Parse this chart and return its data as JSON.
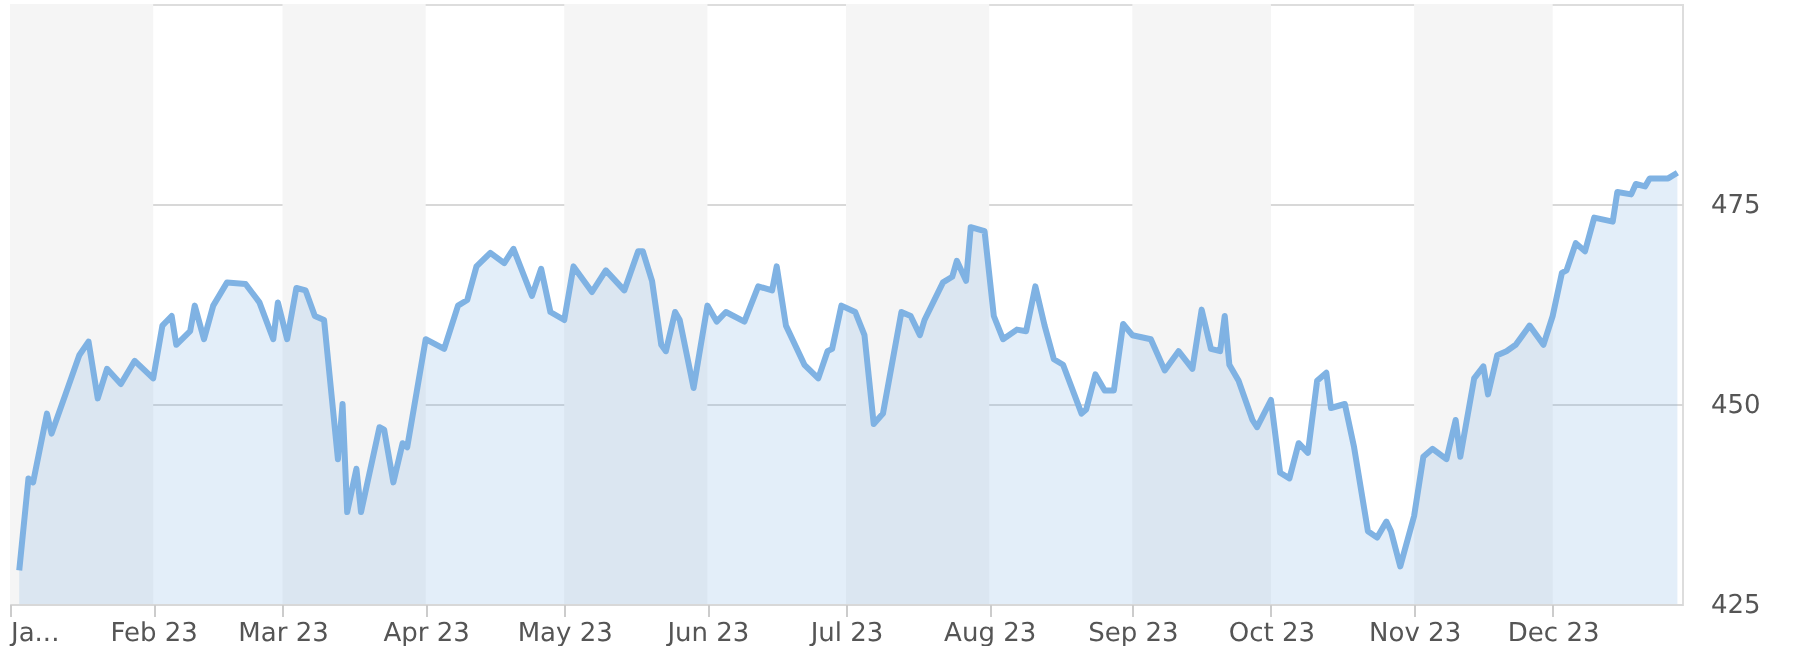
{
  "chart_data": {
    "type": "area",
    "x": [
      "2023-01-03",
      "2023-01-05",
      "2023-01-06",
      "2023-01-09",
      "2023-01-10",
      "2023-01-13",
      "2023-01-16",
      "2023-01-18",
      "2023-01-20",
      "2023-01-22",
      "2023-01-25",
      "2023-01-28",
      "2023-02-01",
      "2023-02-03",
      "2023-02-05",
      "2023-02-06",
      "2023-02-09",
      "2023-02-10",
      "2023-02-12",
      "2023-02-14",
      "2023-02-17",
      "2023-02-21",
      "2023-02-24",
      "2023-02-27",
      "2023-02-28",
      "2023-03-02",
      "2023-03-04",
      "2023-03-06",
      "2023-03-08",
      "2023-03-10",
      "2023-03-13",
      "2023-03-14",
      "2023-03-15",
      "2023-03-17",
      "2023-03-18",
      "2023-03-22",
      "2023-03-23",
      "2023-03-25",
      "2023-03-27",
      "2023-03-28",
      "2023-04-01",
      "2023-04-05",
      "2023-04-08",
      "2023-04-10",
      "2023-04-12",
      "2023-04-15",
      "2023-04-18",
      "2023-04-20",
      "2023-04-24",
      "2023-04-26",
      "2023-04-28",
      "2023-05-01",
      "2023-05-03",
      "2023-05-07",
      "2023-05-10",
      "2023-05-14",
      "2023-05-17",
      "2023-05-18",
      "2023-05-20",
      "2023-05-22",
      "2023-05-23",
      "2023-05-25",
      "2023-05-26",
      "2023-05-29",
      "2023-06-01",
      "2023-06-03",
      "2023-06-05",
      "2023-06-09",
      "2023-06-12",
      "2023-06-15",
      "2023-06-16",
      "2023-06-18",
      "2023-06-22",
      "2023-06-25",
      "2023-06-27",
      "2023-06-28",
      "2023-06-30",
      "2023-07-03",
      "2023-07-05",
      "2023-07-07",
      "2023-07-09",
      "2023-07-13",
      "2023-07-15",
      "2023-07-17",
      "2023-07-18",
      "2023-07-22",
      "2023-07-24",
      "2023-07-25",
      "2023-07-27",
      "2023-07-28",
      "2023-07-31",
      "2023-08-02",
      "2023-08-04",
      "2023-08-07",
      "2023-08-09",
      "2023-08-11",
      "2023-08-13",
      "2023-08-15",
      "2023-08-17",
      "2023-08-21",
      "2023-08-22",
      "2023-08-24",
      "2023-08-26",
      "2023-08-28",
      "2023-08-30",
      "2023-09-01",
      "2023-09-05",
      "2023-09-08",
      "2023-09-11",
      "2023-09-14",
      "2023-09-16",
      "2023-09-18",
      "2023-09-20",
      "2023-09-21",
      "2023-09-22",
      "2023-09-24",
      "2023-09-27",
      "2023-09-28",
      "2023-10-01",
      "2023-10-03",
      "2023-10-05",
      "2023-10-07",
      "2023-10-09",
      "2023-10-11",
      "2023-10-13",
      "2023-10-14",
      "2023-10-17",
      "2023-10-19",
      "2023-10-22",
      "2023-10-24",
      "2023-10-26",
      "2023-10-27",
      "2023-10-29",
      "2023-11-01",
      "2023-11-03",
      "2023-11-05",
      "2023-11-08",
      "2023-11-10",
      "2023-11-11",
      "2023-11-14",
      "2023-11-16",
      "2023-11-17",
      "2023-11-19",
      "2023-11-21",
      "2023-11-23",
      "2023-11-26",
      "2023-11-29",
      "2023-12-01",
      "2023-12-03",
      "2023-12-04",
      "2023-12-06",
      "2023-12-08",
      "2023-12-10",
      "2023-12-14",
      "2023-12-15",
      "2023-12-18",
      "2023-12-19",
      "2023-12-21",
      "2023-12-22",
      "2023-12-26",
      "2023-12-28"
    ],
    "series": [
      {
        "color": "#7fb2e3",
        "values": [
          429.2,
          440.7,
          440.2,
          448.8,
          446.3,
          451.2,
          456.1,
          457.8,
          450.7,
          454.4,
          452.5,
          455.4,
          453.2,
          459.8,
          461.0,
          457.4,
          459.1,
          462.3,
          458.1,
          462.3,
          465.2,
          465.0,
          462.7,
          458.1,
          462.7,
          458.1,
          464.5,
          464.2,
          461.0,
          460.5,
          443.1,
          450.0,
          436.5,
          441.9,
          436.5,
          447.1,
          446.8,
          440.2,
          445.1,
          444.6,
          458.1,
          456.9,
          462.3,
          463.0,
          467.2,
          468.9,
          467.6,
          469.4,
          463.5,
          466.9,
          461.5,
          460.5,
          467.2,
          464.0,
          466.7,
          464.2,
          469.1,
          469.1,
          465.4,
          457.4,
          456.6,
          461.5,
          460.5,
          452.0,
          462.3,
          460.3,
          461.5,
          460.3,
          464.7,
          464.2,
          467.2,
          459.8,
          454.9,
          453.2,
          456.6,
          456.9,
          462.3,
          461.5,
          458.6,
          447.5,
          448.8,
          461.5,
          461.0,
          458.6,
          460.5,
          465.2,
          465.9,
          467.9,
          465.4,
          472.1,
          471.6,
          461.0,
          458.1,
          459.3,
          459.1,
          464.7,
          459.8,
          455.6,
          454.9,
          448.8,
          449.3,
          453.7,
          451.7,
          451.7,
          460.0,
          458.6,
          458.1,
          454.2,
          456.6,
          454.4,
          461.8,
          456.9,
          456.6,
          461.0,
          454.9,
          452.9,
          448.0,
          447.1,
          450.5,
          441.4,
          440.7,
          445.1,
          443.9,
          452.9,
          453.9,
          449.5,
          450.0,
          444.6,
          434.1,
          433.3,
          435.3,
          434.1,
          429.7,
          436.0,
          443.4,
          444.4,
          443.1,
          448.0,
          443.4,
          453.2,
          454.7,
          451.2,
          456.1,
          456.6,
          457.4,
          459.8,
          457.4,
          461.0,
          466.4,
          466.7,
          470.1,
          469.1,
          473.3,
          472.8,
          476.5,
          476.2,
          477.5,
          477.2,
          478.2,
          478.2,
          478.9
        ]
      }
    ],
    "xlim": [
      "2023-01-01",
      "2023-12-29"
    ],
    "xticks": [
      {
        "value": "2023-01-01",
        "label": "Ja..."
      },
      {
        "value": "2023-02-01",
        "label": "Feb 23"
      },
      {
        "value": "2023-03-01",
        "label": "Mar 23"
      },
      {
        "value": "2023-04-01",
        "label": "Apr 23"
      },
      {
        "value": "2023-05-01",
        "label": "May 23"
      },
      {
        "value": "2023-06-01",
        "label": "Jun 23"
      },
      {
        "value": "2023-07-01",
        "label": "Jul 23"
      },
      {
        "value": "2023-08-01",
        "label": "Aug 23"
      },
      {
        "value": "2023-09-01",
        "label": "Sep 23"
      },
      {
        "value": "2023-10-01",
        "label": "Oct 23"
      },
      {
        "value": "2023-11-01",
        "label": "Nov 23"
      },
      {
        "value": "2023-12-01",
        "label": "Dec 23"
      }
    ],
    "ylim": [
      425,
      500
    ],
    "yticks": [
      425,
      450,
      475
    ],
    "grid": "y",
    "bands": [
      {
        "axis": "x",
        "from": "2023-01-01",
        "to": "2023-02-01",
        "color": "#f5f5f5"
      },
      {
        "axis": "x",
        "from": "2023-03-01",
        "to": "2023-04-01",
        "color": "#f5f5f5"
      },
      {
        "axis": "x",
        "from": "2023-05-01",
        "to": "2023-06-01",
        "color": "#f5f5f5"
      },
      {
        "axis": "x",
        "from": "2023-07-01",
        "to": "2023-08-01",
        "color": "#f5f5f5"
      },
      {
        "axis": "x",
        "from": "2023-09-01",
        "to": "2023-10-01",
        "color": "#f5f5f5"
      },
      {
        "axis": "x",
        "from": "2023-11-01",
        "to": "2023-12-01",
        "color": "#f5f5f5"
      }
    ]
  }
}
